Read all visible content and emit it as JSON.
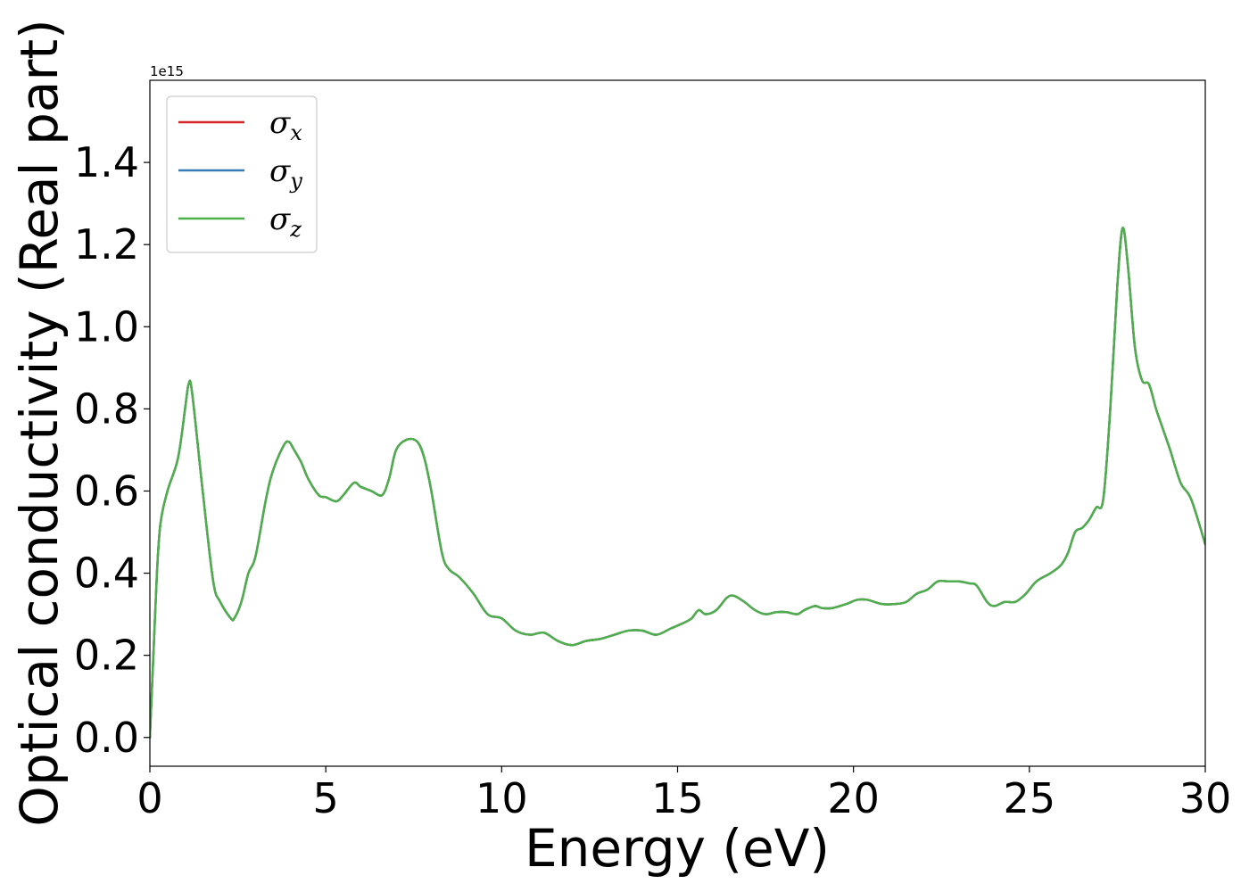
{
  "chart_data": {
    "type": "line",
    "xlabel": "Energy (eV)",
    "ylabel": "Optical conductivity (Real part)",
    "y_offset_label": "1e15",
    "xlim": [
      0,
      30
    ],
    "ylim": [
      -0.07,
      1.6
    ],
    "xticks": [
      0,
      5,
      10,
      15,
      20,
      25,
      30
    ],
    "xtick_labels": [
      "0",
      "5",
      "10",
      "15",
      "20",
      "25",
      "30"
    ],
    "yticks": [
      0.0,
      0.2,
      0.4,
      0.6,
      0.8,
      1.0,
      1.2,
      1.4
    ],
    "ytick_labels": [
      "0.0",
      "0.2",
      "0.4",
      "0.6",
      "0.8",
      "1.0",
      "1.2",
      "1.4"
    ],
    "grid": false,
    "legend_position": "top-left",
    "series": [
      {
        "name": "σx",
        "base": "σ",
        "sub": "x",
        "color": "#d62728",
        "x": [
          0,
          0.1,
          0.2,
          0.3,
          0.5,
          0.8,
          1.0,
          1.1,
          1.2,
          1.5,
          1.8,
          2.0,
          2.3,
          2.4,
          2.6,
          2.8,
          3.0,
          3.3,
          3.5,
          3.8,
          3.95,
          4.1,
          4.3,
          4.5,
          4.8,
          5.0,
          5.3,
          5.5,
          5.8,
          6.0,
          6.3,
          6.6,
          6.8,
          7.0,
          7.3,
          7.6,
          7.8,
          8.0,
          8.3,
          8.5,
          8.8,
          9.2,
          9.6,
          10.0,
          10.4,
          10.8,
          11.2,
          11.6,
          12.0,
          12.4,
          12.8,
          13.2,
          13.6,
          14.0,
          14.4,
          14.8,
          15.2,
          15.4,
          15.6,
          15.8,
          16.1,
          16.4,
          16.6,
          16.9,
          17.2,
          17.5,
          17.8,
          18.1,
          18.4,
          18.6,
          18.9,
          19.1,
          19.4,
          19.8,
          20.1,
          20.4,
          20.8,
          21.2,
          21.5,
          21.8,
          22.1,
          22.4,
          22.7,
          23.0,
          23.3,
          23.5,
          23.8,
          24.0,
          24.3,
          24.6,
          24.9,
          25.2,
          25.6,
          25.9,
          26.1,
          26.3,
          26.5,
          26.7,
          26.9,
          27.1,
          27.3,
          27.5,
          27.65,
          27.8,
          28.0,
          28.2,
          28.4,
          28.6,
          28.8,
          29.0,
          29.3,
          29.6,
          30.0
        ],
        "y": [
          0,
          0.2,
          0.4,
          0.52,
          0.6,
          0.68,
          0.8,
          0.86,
          0.84,
          0.6,
          0.38,
          0.33,
          0.29,
          0.29,
          0.33,
          0.4,
          0.44,
          0.58,
          0.65,
          0.71,
          0.72,
          0.7,
          0.67,
          0.63,
          0.59,
          0.585,
          0.575,
          0.59,
          0.62,
          0.61,
          0.6,
          0.59,
          0.63,
          0.7,
          0.725,
          0.72,
          0.68,
          0.6,
          0.45,
          0.41,
          0.39,
          0.35,
          0.3,
          0.29,
          0.26,
          0.25,
          0.255,
          0.235,
          0.225,
          0.235,
          0.24,
          0.25,
          0.26,
          0.26,
          0.25,
          0.265,
          0.28,
          0.29,
          0.31,
          0.3,
          0.31,
          0.34,
          0.345,
          0.33,
          0.31,
          0.3,
          0.305,
          0.305,
          0.3,
          0.31,
          0.32,
          0.315,
          0.315,
          0.325,
          0.335,
          0.335,
          0.325,
          0.325,
          0.33,
          0.35,
          0.36,
          0.38,
          0.38,
          0.38,
          0.375,
          0.37,
          0.33,
          0.32,
          0.33,
          0.33,
          0.35,
          0.38,
          0.4,
          0.42,
          0.45,
          0.5,
          0.51,
          0.53,
          0.56,
          0.58,
          0.8,
          1.1,
          1.24,
          1.15,
          0.95,
          0.87,
          0.86,
          0.8,
          0.75,
          0.7,
          0.62,
          0.58,
          0.47
        ]
      },
      {
        "name": "σy",
        "base": "σ",
        "sub": "y",
        "color": "#377eb8",
        "x": [
          0,
          0.1,
          0.2,
          0.3,
          0.5,
          0.8,
          1.0,
          1.1,
          1.2,
          1.5,
          1.8,
          2.0,
          2.3,
          2.4,
          2.6,
          2.8,
          3.0,
          3.3,
          3.5,
          3.8,
          3.95,
          4.1,
          4.3,
          4.5,
          4.8,
          5.0,
          5.3,
          5.5,
          5.8,
          6.0,
          6.3,
          6.6,
          6.8,
          7.0,
          7.3,
          7.6,
          7.8,
          8.0,
          8.3,
          8.5,
          8.8,
          9.2,
          9.6,
          10.0,
          10.4,
          10.8,
          11.2,
          11.6,
          12.0,
          12.4,
          12.8,
          13.2,
          13.6,
          14.0,
          14.4,
          14.8,
          15.2,
          15.4,
          15.6,
          15.8,
          16.1,
          16.4,
          16.6,
          16.9,
          17.2,
          17.5,
          17.8,
          18.1,
          18.4,
          18.6,
          18.9,
          19.1,
          19.4,
          19.8,
          20.1,
          20.4,
          20.8,
          21.2,
          21.5,
          21.8,
          22.1,
          22.4,
          22.7,
          23.0,
          23.3,
          23.5,
          23.8,
          24.0,
          24.3,
          24.6,
          24.9,
          25.2,
          25.6,
          25.9,
          26.1,
          26.3,
          26.5,
          26.7,
          26.9,
          27.1,
          27.3,
          27.5,
          27.65,
          27.8,
          28.0,
          28.2,
          28.4,
          28.6,
          28.8,
          29.0,
          29.3,
          29.6,
          30.0
        ],
        "y": [
          0,
          0.2,
          0.4,
          0.52,
          0.6,
          0.68,
          0.8,
          0.86,
          0.84,
          0.6,
          0.38,
          0.33,
          0.29,
          0.29,
          0.33,
          0.4,
          0.44,
          0.58,
          0.65,
          0.71,
          0.72,
          0.7,
          0.67,
          0.63,
          0.59,
          0.585,
          0.575,
          0.59,
          0.62,
          0.61,
          0.6,
          0.59,
          0.63,
          0.7,
          0.725,
          0.72,
          0.68,
          0.6,
          0.45,
          0.41,
          0.39,
          0.35,
          0.3,
          0.29,
          0.26,
          0.25,
          0.255,
          0.235,
          0.225,
          0.235,
          0.24,
          0.25,
          0.26,
          0.26,
          0.25,
          0.265,
          0.28,
          0.29,
          0.31,
          0.3,
          0.31,
          0.34,
          0.345,
          0.33,
          0.31,
          0.3,
          0.305,
          0.305,
          0.3,
          0.31,
          0.32,
          0.315,
          0.315,
          0.325,
          0.335,
          0.335,
          0.325,
          0.325,
          0.33,
          0.35,
          0.36,
          0.38,
          0.38,
          0.38,
          0.375,
          0.37,
          0.33,
          0.32,
          0.33,
          0.33,
          0.35,
          0.38,
          0.4,
          0.42,
          0.45,
          0.5,
          0.51,
          0.53,
          0.56,
          0.58,
          0.8,
          1.1,
          1.24,
          1.15,
          0.95,
          0.87,
          0.86,
          0.8,
          0.75,
          0.7,
          0.62,
          0.58,
          0.47
        ]
      },
      {
        "name": "σz",
        "base": "σ",
        "sub": "z",
        "color": "#4daf4a",
        "x": [
          0,
          0.1,
          0.2,
          0.3,
          0.5,
          0.8,
          1.0,
          1.1,
          1.2,
          1.5,
          1.8,
          2.0,
          2.3,
          2.4,
          2.6,
          2.8,
          3.0,
          3.3,
          3.5,
          3.8,
          3.95,
          4.1,
          4.3,
          4.5,
          4.8,
          5.0,
          5.3,
          5.5,
          5.8,
          6.0,
          6.3,
          6.6,
          6.8,
          7.0,
          7.3,
          7.6,
          7.8,
          8.0,
          8.3,
          8.5,
          8.8,
          9.2,
          9.6,
          10.0,
          10.4,
          10.8,
          11.2,
          11.6,
          12.0,
          12.4,
          12.8,
          13.2,
          13.6,
          14.0,
          14.4,
          14.8,
          15.2,
          15.4,
          15.6,
          15.8,
          16.1,
          16.4,
          16.6,
          16.9,
          17.2,
          17.5,
          17.8,
          18.1,
          18.4,
          18.6,
          18.9,
          19.1,
          19.4,
          19.8,
          20.1,
          20.4,
          20.8,
          21.2,
          21.5,
          21.8,
          22.1,
          22.4,
          22.7,
          23.0,
          23.3,
          23.5,
          23.8,
          24.0,
          24.3,
          24.6,
          24.9,
          25.2,
          25.6,
          25.9,
          26.1,
          26.3,
          26.5,
          26.7,
          26.9,
          27.1,
          27.3,
          27.5,
          27.65,
          27.8,
          28.0,
          28.2,
          28.4,
          28.6,
          28.8,
          29.0,
          29.3,
          29.6,
          30.0
        ],
        "y": [
          0,
          0.2,
          0.4,
          0.52,
          0.6,
          0.68,
          0.8,
          0.86,
          0.84,
          0.6,
          0.38,
          0.33,
          0.29,
          0.29,
          0.33,
          0.4,
          0.44,
          0.58,
          0.65,
          0.71,
          0.72,
          0.7,
          0.67,
          0.63,
          0.59,
          0.585,
          0.575,
          0.59,
          0.62,
          0.61,
          0.6,
          0.59,
          0.63,
          0.7,
          0.725,
          0.72,
          0.68,
          0.6,
          0.45,
          0.41,
          0.39,
          0.35,
          0.3,
          0.29,
          0.26,
          0.25,
          0.255,
          0.235,
          0.225,
          0.235,
          0.24,
          0.25,
          0.26,
          0.26,
          0.25,
          0.265,
          0.28,
          0.29,
          0.31,
          0.3,
          0.31,
          0.34,
          0.345,
          0.33,
          0.31,
          0.3,
          0.305,
          0.305,
          0.3,
          0.31,
          0.32,
          0.315,
          0.315,
          0.325,
          0.335,
          0.335,
          0.325,
          0.325,
          0.33,
          0.35,
          0.36,
          0.38,
          0.38,
          0.38,
          0.375,
          0.37,
          0.33,
          0.32,
          0.33,
          0.33,
          0.35,
          0.38,
          0.4,
          0.42,
          0.45,
          0.5,
          0.51,
          0.53,
          0.56,
          0.58,
          0.8,
          1.1,
          1.24,
          1.15,
          0.95,
          0.87,
          0.86,
          0.8,
          0.75,
          0.7,
          0.62,
          0.58,
          0.47
        ]
      }
    ]
  }
}
